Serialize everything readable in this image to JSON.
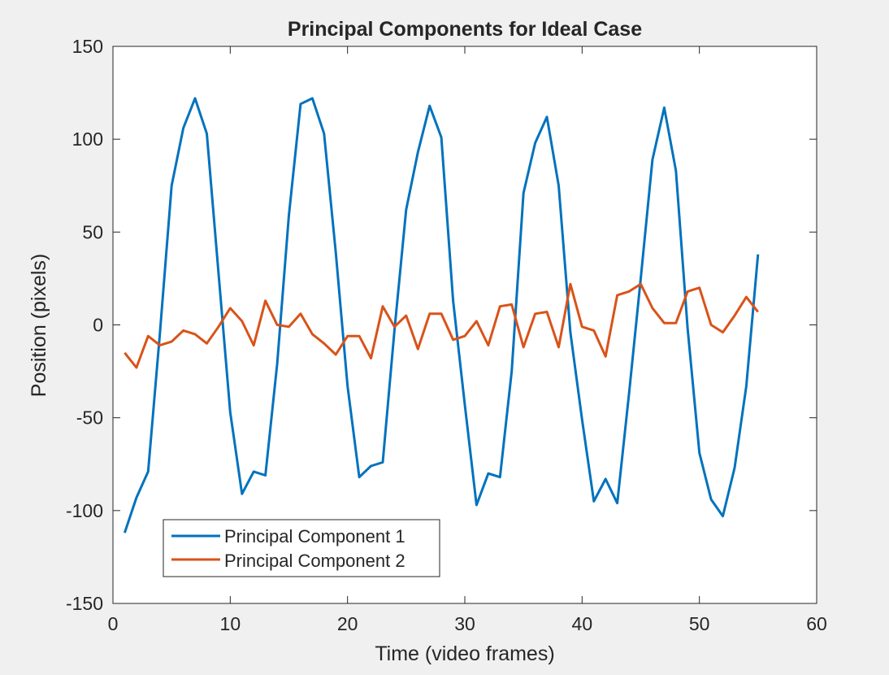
{
  "chart_data": {
    "type": "line",
    "title": "Principal Components for Ideal Case",
    "xlabel": "Time (video frames)",
    "ylabel": "Position (pixels)",
    "xlim": [
      0,
      60
    ],
    "ylim": [
      -150,
      150
    ],
    "xticks": [
      0,
      10,
      20,
      30,
      40,
      50,
      60
    ],
    "yticks": [
      -150,
      -100,
      -50,
      0,
      50,
      100,
      150
    ],
    "grid": false,
    "legend_position": "bottom-left",
    "series": [
      {
        "name": "Principal Component 1",
        "color": "#0072BD",
        "x": [
          1,
          2,
          3,
          4,
          5,
          6,
          7,
          8,
          9,
          10,
          11,
          12,
          13,
          14,
          15,
          16,
          17,
          18,
          19,
          20,
          21,
          22,
          23,
          24,
          25,
          26,
          27,
          28,
          29,
          30,
          31,
          32,
          33,
          34,
          35,
          36,
          37,
          38,
          39,
          40,
          41,
          42,
          43,
          44,
          45,
          46,
          47,
          48,
          49,
          50,
          51,
          52,
          53,
          54,
          55
        ],
        "y": [
          -112,
          -93,
          -79,
          -5,
          75,
          106,
          122,
          103,
          28,
          -47,
          -91,
          -79,
          -81,
          -21,
          59,
          119,
          122,
          103,
          39,
          -33,
          -82,
          -76,
          -74,
          -3,
          62,
          93,
          118,
          101,
          13,
          -43,
          -97,
          -80,
          -82,
          -25,
          71,
          98,
          112,
          75,
          -4,
          -51,
          -95,
          -83,
          -96,
          -37,
          25,
          89,
          117,
          83,
          -2,
          -69,
          -94,
          -103,
          -77,
          -33,
          38
        ]
      },
      {
        "name": "Principal Component 2",
        "color": "#D95319",
        "x": [
          1,
          2,
          3,
          4,
          5,
          6,
          7,
          8,
          9,
          10,
          11,
          12,
          13,
          14,
          15,
          16,
          17,
          18,
          19,
          20,
          21,
          22,
          23,
          24,
          25,
          26,
          27,
          28,
          29,
          30,
          31,
          32,
          33,
          34,
          35,
          36,
          37,
          38,
          39,
          40,
          41,
          42,
          43,
          44,
          45,
          46,
          47,
          48,
          49,
          50,
          51,
          52,
          53,
          54,
          55
        ],
        "y": [
          -15,
          -23,
          -6,
          -11,
          -9,
          -3,
          -5,
          -10,
          -1,
          9,
          2,
          -11,
          13,
          0,
          -1,
          6,
          -5,
          -10,
          -16,
          -6,
          -6,
          -18,
          10,
          -1,
          5,
          -13,
          6,
          6,
          -8,
          -6,
          2,
          -11,
          10,
          11,
          -12,
          6,
          7,
          -12,
          22,
          -1,
          -3,
          -17,
          16,
          18,
          22,
          9,
          1,
          1,
          18,
          20,
          0,
          -4,
          5,
          15,
          7
        ]
      }
    ]
  }
}
